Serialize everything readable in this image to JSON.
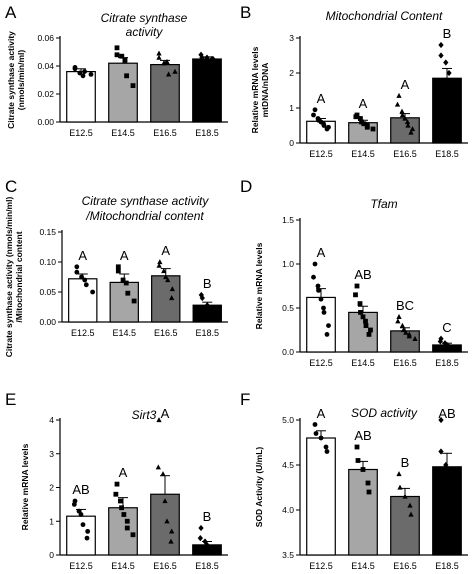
{
  "chart_data": [
    {
      "type": "bar",
      "panel": "A",
      "title": [
        "Citrate synthase",
        "activity"
      ],
      "ylabel": [
        "Citrate synthase activity",
        "(nmols/min/ml)"
      ],
      "categories": [
        "E12.5",
        "E14.5",
        "E16.5",
        "E18.5"
      ],
      "values": [
        0.036,
        0.042,
        0.041,
        0.045
      ],
      "errors": [
        0.002,
        0.004,
        0.003,
        0.0015
      ],
      "points": [
        [
          0.038,
          0.039,
          0.035,
          0.033,
          0.036,
          0.034
        ],
        [
          0.053,
          0.048,
          0.047,
          0.044,
          0.033,
          0.026
        ],
        [
          0.049,
          0.046,
          0.042,
          0.043,
          0.034,
          0.036
        ],
        [
          0.048,
          0.046,
          0.046,
          0.045,
          0.045
        ]
      ],
      "ylim": [
        0,
        0.06
      ],
      "yticks": [
        0.0,
        0.02,
        0.04,
        0.06
      ],
      "ytick_labels": [
        "0.00",
        "0.02",
        "0.04",
        "0.06"
      ],
      "sig_labels": [
        "",
        "",
        "",
        ""
      ],
      "colors": [
        "#ffffff",
        "#a6a6a6",
        "#6b6b6b",
        "#000000"
      ],
      "markers": [
        "circle",
        "square",
        "triangle",
        "diamond"
      ]
    },
    {
      "type": "bar",
      "panel": "B",
      "title": [
        "Mitochondrial Content"
      ],
      "ylabel": [
        "Relative mRNA levels",
        "mtDNA/nDNA"
      ],
      "categories": [
        "E12.5",
        "E14.5",
        "E16.5",
        "E18.5"
      ],
      "values": [
        0.62,
        0.58,
        0.72,
        1.85
      ],
      "errors": [
        0.08,
        0.07,
        0.12,
        0.28
      ],
      "points": [
        [
          0.95,
          0.8,
          0.7,
          0.65,
          0.6,
          0.55,
          0.5,
          0.45,
          0.4
        ],
        [
          0.8,
          0.75,
          0.7,
          0.6,
          0.55,
          0.5,
          0.45,
          0.4
        ],
        [
          1.35,
          1.1,
          0.9,
          0.8,
          0.7,
          0.6,
          0.5,
          0.4,
          0.3
        ],
        [
          2.8,
          2.5,
          2.3,
          2.0,
          1.6,
          1.3
        ]
      ],
      "ylim": [
        0,
        3
      ],
      "yticks": [
        0,
        1,
        2,
        3
      ],
      "ytick_labels": [
        "0",
        "1",
        "2",
        "3"
      ],
      "sig_labels": [
        "A",
        "A",
        "A",
        "B"
      ],
      "colors": [
        "#ffffff",
        "#a6a6a6",
        "#6b6b6b",
        "#000000"
      ],
      "markers": [
        "circle",
        "square",
        "triangle",
        "diamond"
      ]
    },
    {
      "type": "bar",
      "panel": "C",
      "title": [
        "Citrate synthase activity",
        "/Mitochondrial content"
      ],
      "ylabel": [
        "Citrate synthase activity (nmols/min/ml)",
        "/Mitochondrial content"
      ],
      "categories": [
        "E12.5",
        "E14.5",
        "E16.5",
        "E18.5"
      ],
      "values": [
        0.072,
        0.066,
        0.077,
        0.028
      ],
      "errors": [
        0.008,
        0.014,
        0.012,
        0.005
      ],
      "points": [
        [
          0.092,
          0.083,
          0.075,
          0.07,
          0.062,
          0.05
        ],
        [
          0.092,
          0.085,
          0.07,
          0.065,
          0.048,
          0.035
        ],
        [
          0.1,
          0.094,
          0.085,
          0.075,
          0.07,
          0.055,
          0.04
        ],
        [
          0.045,
          0.04,
          0.028,
          0.022,
          0.018
        ]
      ],
      "ylim": [
        0,
        0.15
      ],
      "yticks": [
        0.0,
        0.05,
        0.1,
        0.15
      ],
      "ytick_labels": [
        "0.00",
        "0.05",
        "0.10",
        "0.15"
      ],
      "sig_labels": [
        "A",
        "A",
        "A",
        "B"
      ],
      "colors": [
        "#ffffff",
        "#a6a6a6",
        "#6b6b6b",
        "#000000"
      ],
      "markers": [
        "circle",
        "square",
        "triangle",
        "diamond"
      ]
    },
    {
      "type": "bar",
      "panel": "D",
      "title": [
        "Tfam"
      ],
      "ylabel": [
        "Relative mRNA levels"
      ],
      "categories": [
        "E12.5",
        "E14.5",
        "E16.5",
        "E18.5"
      ],
      "values": [
        0.62,
        0.45,
        0.24,
        0.08
      ],
      "errors": [
        0.1,
        0.07,
        0.035,
        0.02
      ],
      "points": [
        [
          1.0,
          0.85,
          0.75,
          0.7,
          0.6,
          0.5,
          0.45,
          0.3,
          0.2
        ],
        [
          0.75,
          0.65,
          0.55,
          0.45,
          0.4,
          0.35,
          0.3,
          0.25,
          0.2
        ],
        [
          0.4,
          0.35,
          0.3,
          0.25,
          0.22,
          0.2,
          0.18,
          0.15
        ],
        [
          0.15,
          0.12,
          0.1,
          0.08,
          0.06,
          0.05,
          0.04
        ]
      ],
      "ylim": [
        0,
        1.5
      ],
      "yticks": [
        0,
        0.5,
        1,
        1.5
      ],
      "ytick_labels": [
        "0.0",
        "0.5",
        "1.0",
        "1.5"
      ],
      "sig_labels": [
        "A",
        "AB",
        "BC",
        "C"
      ],
      "colors": [
        "#ffffff",
        "#a6a6a6",
        "#6b6b6b",
        "#000000"
      ],
      "markers": [
        "circle",
        "square",
        "triangle",
        "diamond"
      ]
    },
    {
      "type": "bar",
      "panel": "E",
      "title": [
        "Sirt3"
      ],
      "ylabel": [
        "Relative mRNA levels"
      ],
      "categories": [
        "E12.5",
        "E14.5",
        "E16.5",
        "E18.5"
      ],
      "values": [
        1.15,
        1.4,
        1.8,
        0.3
      ],
      "errors": [
        0.2,
        0.3,
        0.55,
        0.1
      ],
      "points": [
        [
          1.6,
          1.5,
          1.3,
          1.2,
          0.9,
          0.7,
          0.5
        ],
        [
          2.1,
          1.8,
          1.6,
          1.4,
          1.2,
          1.0,
          0.8,
          0.6
        ],
        [
          4.0,
          2.6,
          2.4,
          1.6,
          1.0,
          0.7,
          0.4
        ],
        [
          0.8,
          0.5,
          0.4,
          0.3,
          0.2,
          0.15,
          0.1
        ]
      ],
      "ylim": [
        0,
        4
      ],
      "yticks": [
        0,
        1,
        2,
        3,
        4
      ],
      "ytick_labels": [
        "0",
        "1",
        "2",
        "3",
        "4"
      ],
      "sig_labels": [
        "AB",
        "A",
        "A",
        "B"
      ],
      "colors": [
        "#ffffff",
        "#a6a6a6",
        "#6b6b6b",
        "#000000"
      ],
      "markers": [
        "circle",
        "square",
        "triangle",
        "diamond"
      ]
    },
    {
      "type": "bar",
      "panel": "F",
      "title": [
        "SOD activity"
      ],
      "ylabel": [
        "SOD Activity (U/mL)"
      ],
      "categories": [
        "E12.5",
        "E14.5",
        "E16.5",
        "E18.5"
      ],
      "values": [
        4.8,
        4.45,
        4.15,
        4.48
      ],
      "errors": [
        0.08,
        0.09,
        0.09,
        0.15
      ],
      "points": [
        [
          4.95,
          4.85,
          4.8,
          4.7,
          4.65
        ],
        [
          4.7,
          4.55,
          4.45,
          4.3,
          4.2
        ],
        [
          4.4,
          4.25,
          4.15,
          4.05,
          3.95
        ],
        [
          5.0,
          4.65,
          4.5,
          4.4,
          4.3,
          4.05
        ]
      ],
      "ylim": [
        3.5,
        5.0
      ],
      "yticks": [
        3.5,
        4.0,
        4.5,
        5.0
      ],
      "ytick_labels": [
        "3.5",
        "4.0",
        "4.5",
        "5.0"
      ],
      "sig_labels": [
        "A",
        "AB",
        "B",
        "AB"
      ],
      "colors": [
        "#ffffff",
        "#a6a6a6",
        "#6b6b6b",
        "#000000"
      ],
      "markers": [
        "circle",
        "square",
        "triangle",
        "diamond"
      ]
    }
  ]
}
